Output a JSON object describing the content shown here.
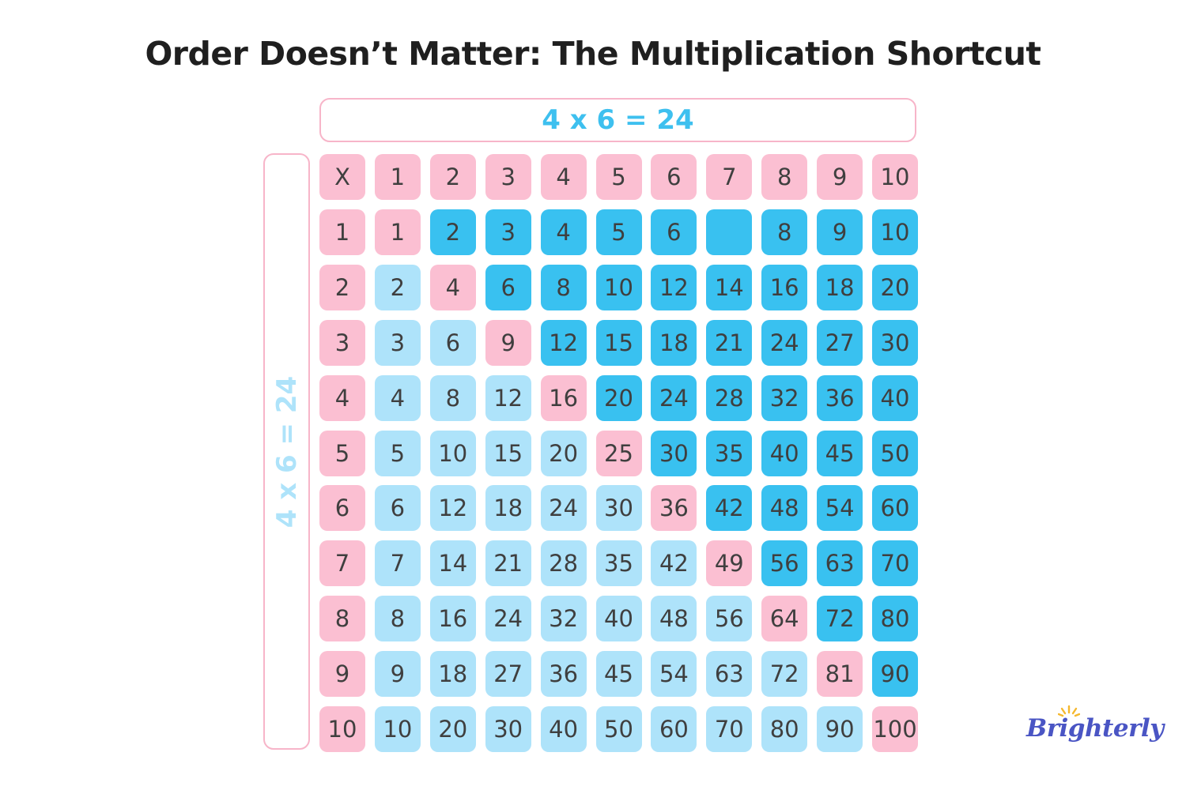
{
  "title": "Order Doesn’t Matter: The Multiplication Shortcut",
  "equation_top": "4 x 6 = 24",
  "equation_side": "4 x 6 = 24",
  "colors": {
    "header_pink": "#fbbfd2",
    "lower_light_blue": "#aee3fa",
    "upper_dark_blue": "#39c1f0",
    "text": "#3f3f3f",
    "frame_pink": "#f7b5c9",
    "equation_blue": "#3ec0ef",
    "logo_blue": "#4a55c4",
    "logo_sun": "#f5b82e"
  },
  "table": {
    "header": [
      "X",
      "1",
      "2",
      "3",
      "4",
      "5",
      "6",
      "7",
      "8",
      "9",
      "10"
    ],
    "rows": [
      [
        "1",
        "1",
        "2",
        "3",
        "4",
        "5",
        "6",
        "",
        "8",
        "9",
        "10"
      ],
      [
        "2",
        "2",
        "4",
        "6",
        "8",
        "10",
        "12",
        "14",
        "16",
        "18",
        "20"
      ],
      [
        "3",
        "3",
        "6",
        "9",
        "12",
        "15",
        "18",
        "21",
        "24",
        "27",
        "30"
      ],
      [
        "4",
        "4",
        "8",
        "12",
        "16",
        "20",
        "24",
        "28",
        "32",
        "36",
        "40"
      ],
      [
        "5",
        "5",
        "10",
        "15",
        "20",
        "25",
        "30",
        "35",
        "40",
        "45",
        "50"
      ],
      [
        "6",
        "6",
        "12",
        "18",
        "24",
        "30",
        "36",
        "42",
        "48",
        "54",
        "60"
      ],
      [
        "7",
        "7",
        "14",
        "21",
        "28",
        "35",
        "42",
        "49",
        "56",
        "63",
        "70"
      ],
      [
        "8",
        "8",
        "16",
        "24",
        "32",
        "40",
        "48",
        "56",
        "64",
        "72",
        "80"
      ],
      [
        "9",
        "9",
        "18",
        "27",
        "36",
        "45",
        "54",
        "63",
        "72",
        "81",
        "90"
      ],
      [
        "10",
        "10",
        "20",
        "30",
        "40",
        "50",
        "60",
        "70",
        "80",
        "90",
        "100"
      ]
    ]
  },
  "logo": {
    "text": "Brighterly",
    "icon": "sun-icon"
  }
}
